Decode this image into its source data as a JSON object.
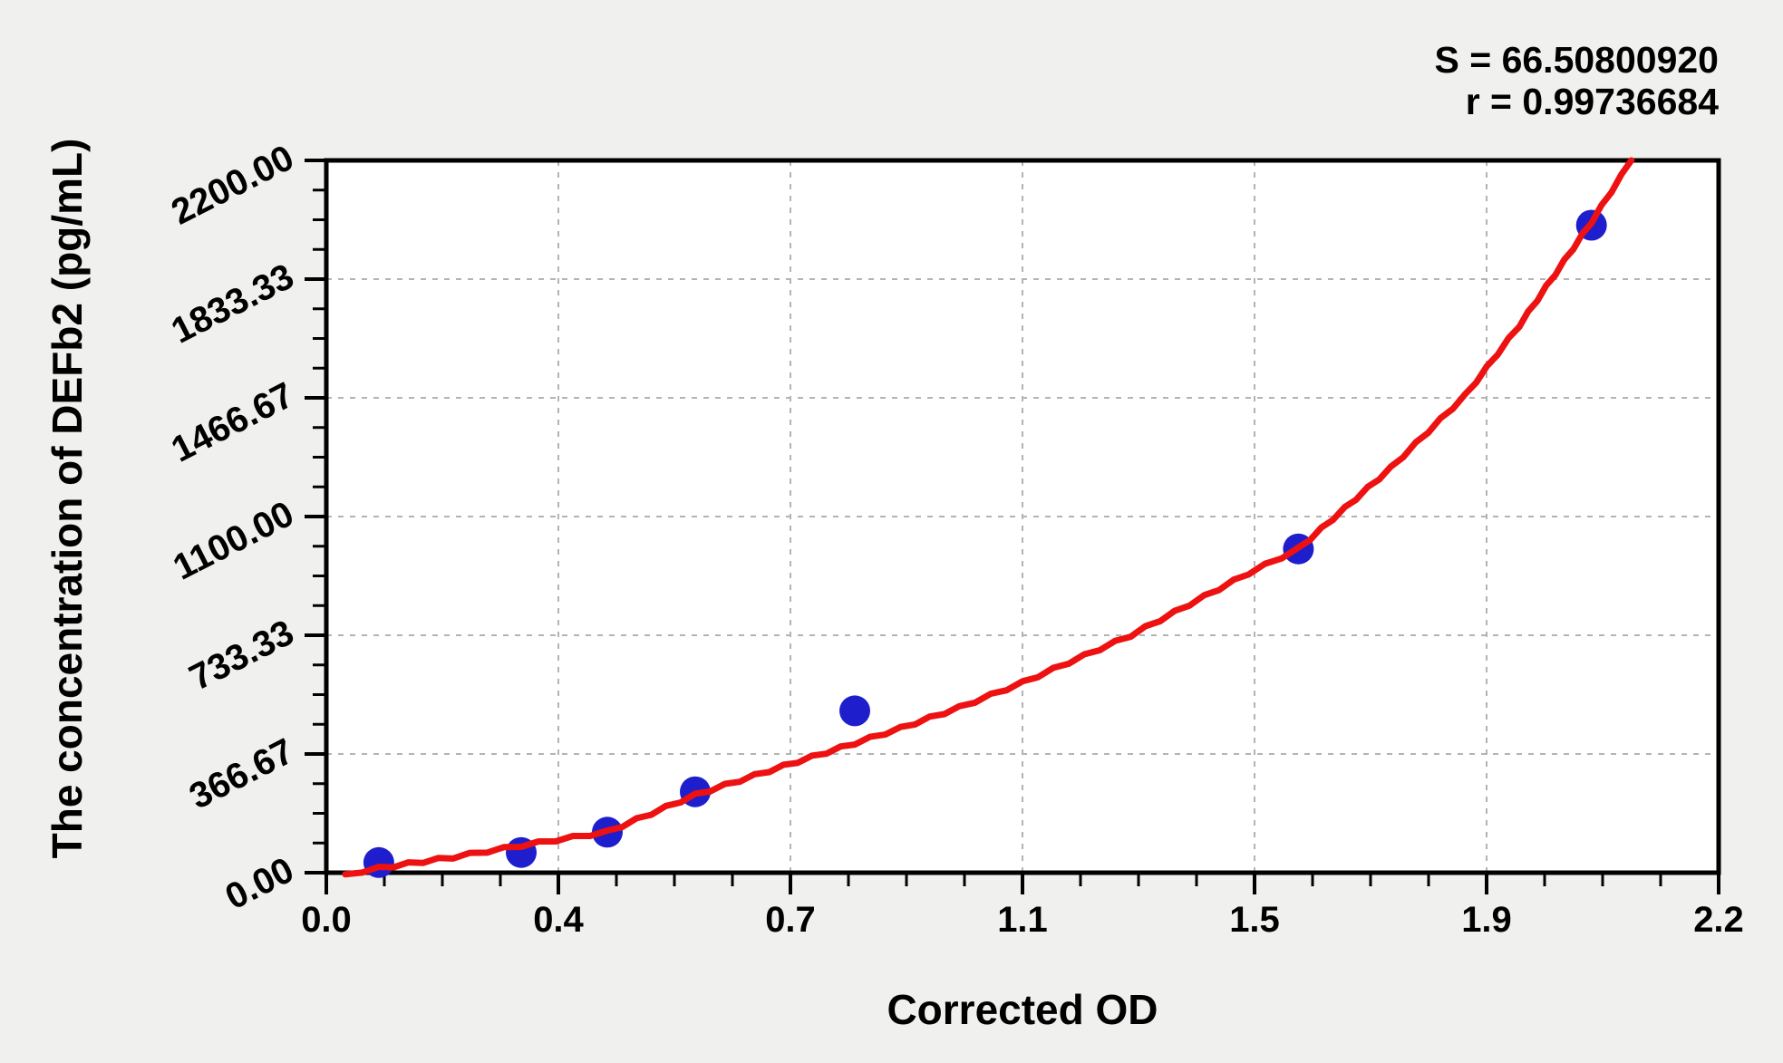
{
  "annotation": {
    "s_text": "S = 66.50800920",
    "r_text": "r = 0.99736684"
  },
  "chart_data": {
    "type": "scatter",
    "title": "",
    "xlabel": "Corrected OD",
    "ylabel": "The concentration of DEFb2 (pg/mL)",
    "xlim": [
      0,
      2.2
    ],
    "ylim": [
      0,
      2200
    ],
    "x_tick_labels": [
      "0.0",
      "0.4",
      "0.7",
      "1.1",
      "1.5",
      "1.9",
      "2.2"
    ],
    "x_tick_values": [
      0,
      0.36667,
      0.73333,
      1.1,
      1.46667,
      1.83333,
      2.2
    ],
    "y_tick_labels": [
      "0.00",
      "366.67",
      "733.33",
      "1100.00",
      "1466.67",
      "1833.33",
      "2200.00"
    ],
    "y_tick_values": [
      0,
      366.67,
      733.33,
      1100,
      1466.67,
      1833.33,
      2200
    ],
    "minor_tick_divisions": 4,
    "grid": "dashed light-gray lines at major ticks, plot area white, outer background light gray",
    "legend_position": "none",
    "fit": {
      "S": 66.5080092,
      "r": 0.99736684
    },
    "series": [
      {
        "name": "standards",
        "type": "scatter",
        "color": "#1e1ecd",
        "marker_radius_px": 17,
        "points": [
          [
            0.083,
            31.25
          ],
          [
            0.308,
            62.5
          ],
          [
            0.444,
            125
          ],
          [
            0.583,
            250
          ],
          [
            0.835,
            500
          ],
          [
            1.536,
            1000
          ],
          [
            1.999,
            2000
          ]
        ]
      },
      {
        "name": "fitted_curve",
        "type": "line",
        "color": "#ee1111",
        "stroke_width_px": 7,
        "points": [
          [
            0.03,
            -5
          ],
          [
            0.083,
            14
          ],
          [
            0.2,
            48
          ],
          [
            0.308,
            84
          ],
          [
            0.444,
            126
          ],
          [
            0.583,
            240
          ],
          [
            0.7,
            315
          ],
          [
            0.835,
            400
          ],
          [
            0.907,
            446
          ],
          [
            1.0,
            510
          ],
          [
            1.1,
            587
          ],
          [
            1.271,
            733
          ],
          [
            1.457,
            925
          ],
          [
            1.536,
            1000
          ],
          [
            1.682,
            1250
          ],
          [
            1.8,
            1475
          ],
          [
            1.885,
            1690
          ],
          [
            1.999,
            2010
          ],
          [
            2.062,
            2200
          ]
        ]
      }
    ],
    "colors": {
      "point": "#1e1ecd",
      "curve": "#ee1111",
      "grid": "#b3b3b3",
      "axis": "#000000",
      "plot_bg": "#ffffff",
      "page_bg": "#f0f0ee"
    }
  }
}
